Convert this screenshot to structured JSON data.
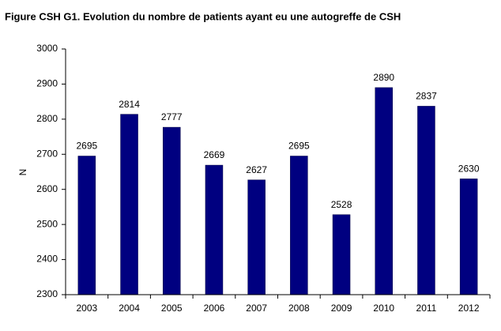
{
  "chart_data": {
    "type": "bar",
    "title": "Figure CSH G1. Evolution du nombre de patients ayant eu une autogreffe de CSH",
    "y_label": "N",
    "categories": [
      "2003",
      "2004",
      "2005",
      "2006",
      "2007",
      "2008",
      "2009",
      "2010",
      "2011",
      "2012"
    ],
    "values": [
      2695,
      2814,
      2777,
      2669,
      2627,
      2695,
      2528,
      2890,
      2837,
      2630
    ],
    "color": "#000080",
    "ylim": [
      2300,
      3000
    ],
    "yticks": [
      2300,
      2400,
      2500,
      2600,
      2700,
      2800,
      2900,
      3000
    ],
    "grid": false
  }
}
